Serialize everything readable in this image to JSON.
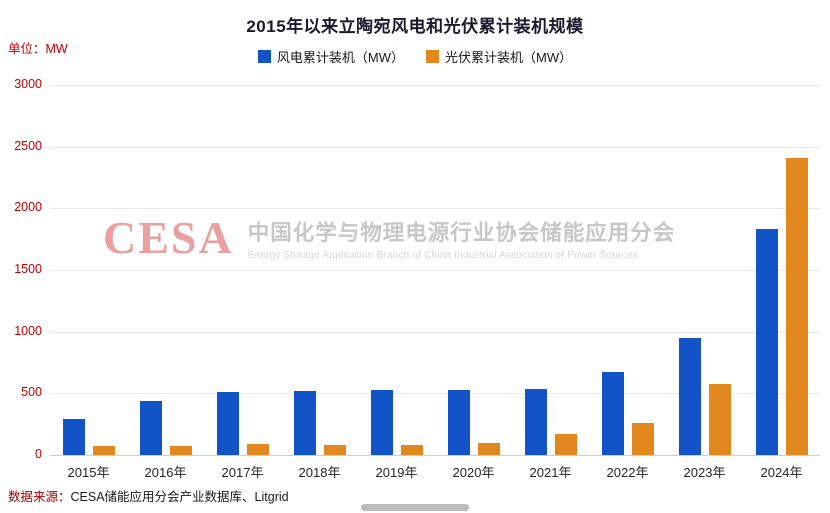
{
  "header": {
    "title": "2015年以来立陶宛风电和光伏累计装机规模",
    "unit_label": "单位：MW"
  },
  "legend": [
    {
      "label": "风电累计装机（MW）",
      "color": "#1254c8"
    },
    {
      "label": "光伏累计装机（MW）",
      "color": "#e3881f"
    }
  ],
  "watermark": {
    "logo": "CESA",
    "cn": "中国化学与物理电源行业协会储能应用分会",
    "en": "Energy Storage Application Branch of China Industrial Association of Power Sources"
  },
  "footer": {
    "label": "数据来源：",
    "text": "CESA储能应用分会产业数据库、Litgrid"
  },
  "chart_data": {
    "type": "bar",
    "title": "2015年以来立陶宛风电和光伏累计装机规模",
    "categories": [
      "2015年",
      "2016年",
      "2017年",
      "2018年",
      "2019年",
      "2020年",
      "2021年",
      "2022年",
      "2023年",
      "2024年"
    ],
    "series": [
      {
        "name": "风电累计装机（MW）",
        "color": "#1254c8",
        "values": [
          295,
          440,
          510,
          520,
          530,
          530,
          535,
          670,
          945,
          1830
        ]
      },
      {
        "name": "光伏累计装机（MW）",
        "color": "#e3881f",
        "values": [
          70,
          75,
          90,
          85,
          85,
          100,
          170,
          260,
          575,
          2410
        ]
      }
    ],
    "xlabel": "",
    "ylabel": "MW",
    "ylim": [
      0,
      3000
    ],
    "yticks": [
      0,
      500,
      1000,
      1500,
      2000,
      2500,
      3000
    ],
    "grid": true,
    "legend_position": "top"
  }
}
